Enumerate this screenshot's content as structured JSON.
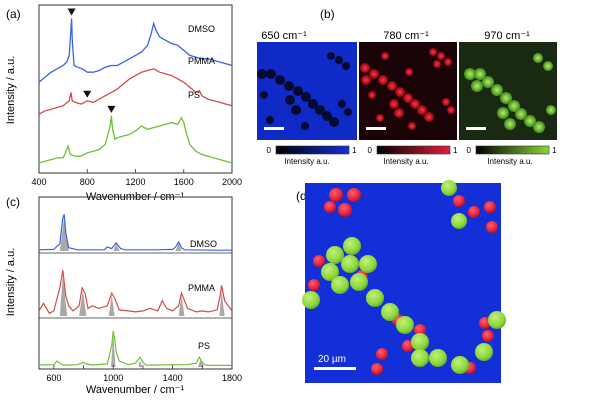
{
  "figure": {
    "panels": {
      "a": "(a)",
      "b": "(b)",
      "c": "(c)",
      "d": "(d)"
    },
    "colors": {
      "dmso": "#3a62e8",
      "pmma": "#d34a4a",
      "ps": "#6fbf3a",
      "peak_fill": "#9a9a9a",
      "map_blue": "#1330d8",
      "map_red": "#e0203a",
      "map_green": "#8ad63a"
    }
  },
  "chart_data": [
    {
      "id": "a",
      "type": "line",
      "title": "",
      "xlabel": "Wavenumber / cm⁻¹",
      "ylabel": "Intensity / a.u.",
      "xlim": [
        400,
        2000
      ],
      "xticks": [
        "400",
        "800",
        "1200",
        "1600",
        "2000"
      ],
      "xtick_values": [
        400,
        800,
        1200,
        1600,
        2000
      ],
      "series": [
        {
          "name": "DMSO",
          "label": "DMSO",
          "marker_at": 670,
          "x": [
            400,
            450,
            500,
            550,
            600,
            630,
            650,
            665,
            670,
            675,
            690,
            720,
            760,
            800,
            850,
            900,
            950,
            1000,
            1050,
            1100,
            1150,
            1200,
            1250,
            1300,
            1330,
            1350,
            1370,
            1400,
            1450,
            1500,
            1550,
            1600,
            1650,
            1700,
            1750,
            1800,
            1850,
            1900,
            1950,
            2000
          ],
          "y": [
            0.54,
            0.57,
            0.6,
            0.62,
            0.64,
            0.66,
            0.7,
            0.86,
            0.92,
            0.8,
            0.64,
            0.63,
            0.62,
            0.6,
            0.6,
            0.61,
            0.63,
            0.64,
            0.64,
            0.66,
            0.68,
            0.7,
            0.72,
            0.76,
            0.83,
            0.89,
            0.85,
            0.81,
            0.79,
            0.77,
            0.76,
            0.73,
            0.7,
            0.69,
            0.68,
            0.68,
            0.67,
            0.66,
            0.65,
            0.64
          ]
        },
        {
          "name": "PMMA",
          "label": "PMMA",
          "marker_at": 800,
          "x": [
            400,
            450,
            500,
            550,
            600,
            650,
            665,
            675,
            700,
            750,
            800,
            850,
            900,
            950,
            1000,
            1050,
            1100,
            1150,
            1200,
            1250,
            1300,
            1350,
            1400,
            1450,
            1500,
            1550,
            1600,
            1650,
            1700,
            1730,
            1750,
            1800,
            1850,
            1900,
            1950,
            2000
          ],
          "y": [
            0.35,
            0.37,
            0.38,
            0.39,
            0.4,
            0.43,
            0.48,
            0.43,
            0.42,
            0.41,
            0.43,
            0.42,
            0.44,
            0.46,
            0.48,
            0.5,
            0.53,
            0.56,
            0.58,
            0.6,
            0.61,
            0.62,
            0.6,
            0.59,
            0.58,
            0.56,
            0.54,
            0.51,
            0.48,
            0.49,
            0.46,
            0.44,
            0.43,
            0.42,
            0.41,
            0.4
          ]
        },
        {
          "name": "PS",
          "label": "PS",
          "marker_at": 1000,
          "x": [
            400,
            450,
            500,
            550,
            600,
            620,
            640,
            660,
            700,
            750,
            800,
            850,
            900,
            950,
            990,
            1000,
            1010,
            1030,
            1050,
            1100,
            1150,
            1200,
            1250,
            1300,
            1350,
            1400,
            1450,
            1500,
            1550,
            1580,
            1600,
            1620,
            1650,
            1700,
            1750,
            1800,
            1850,
            1900,
            1950,
            2000
          ],
          "y": [
            0.06,
            0.07,
            0.08,
            0.09,
            0.09,
            0.12,
            0.16,
            0.11,
            0.1,
            0.1,
            0.12,
            0.13,
            0.14,
            0.17,
            0.28,
            0.34,
            0.26,
            0.2,
            0.21,
            0.22,
            0.23,
            0.25,
            0.28,
            0.26,
            0.27,
            0.28,
            0.29,
            0.3,
            0.29,
            0.33,
            0.3,
            0.24,
            0.17,
            0.13,
            0.11,
            0.1,
            0.09,
            0.08,
            0.07,
            0.06
          ]
        }
      ]
    },
    {
      "id": "c",
      "type": "line",
      "title": "",
      "xlabel": "Wavenumber / cm⁻¹",
      "ylabel": "Intensity / a.u.",
      "xlim": [
        500,
        1800
      ],
      "xticks": [
        "600",
        "800",
        "1000",
        "1200",
        "1400",
        "1600",
        "1800"
      ],
      "xtick_values": [
        600,
        800,
        1000,
        1200,
        1400,
        1600,
        1800
      ],
      "series": [
        {
          "name": "DMSO",
          "label": "DMSO",
          "x": [
            500,
            600,
            640,
            660,
            670,
            680,
            700,
            760,
            940,
            960,
            990,
            1020,
            1050,
            1080,
            1300,
            1400,
            1420,
            1440,
            1460,
            1480,
            1700,
            1800
          ],
          "y": [
            0.03,
            0.04,
            0.18,
            0.8,
            0.9,
            0.45,
            0.08,
            0.03,
            0.03,
            0.1,
            0.06,
            0.2,
            0.06,
            0.03,
            0.03,
            0.04,
            0.1,
            0.22,
            0.08,
            0.03,
            0.02,
            0.02
          ],
          "fill": [
            [
              640,
              670,
              700,
              0.85
            ],
            [
              1000,
              1020,
              1045,
              0.18
            ],
            [
              1420,
              1440,
              1460,
              0.2
            ]
          ]
        },
        {
          "name": "PMMA",
          "label": "PMMA",
          "x": [
            500,
            530,
            570,
            600,
            640,
            660,
            680,
            700,
            730,
            770,
            790,
            810,
            830,
            860,
            900,
            960,
            990,
            1010,
            1040,
            1100,
            1150,
            1200,
            1250,
            1300,
            1330,
            1360,
            1400,
            1440,
            1460,
            1480,
            1500,
            1560,
            1600,
            1640,
            1700,
            1720,
            1730,
            1750,
            1800
          ],
          "y": [
            0.1,
            0.25,
            0.05,
            0.1,
            0.55,
            0.9,
            0.4,
            0.2,
            0.1,
            0.2,
            0.55,
            0.45,
            0.15,
            0.2,
            0.15,
            0.2,
            0.45,
            0.35,
            0.12,
            0.1,
            0.08,
            0.1,
            0.15,
            0.1,
            0.3,
            0.15,
            0.1,
            0.2,
            0.45,
            0.3,
            0.15,
            0.08,
            0.1,
            0.08,
            0.12,
            0.4,
            0.6,
            0.3,
            0.1
          ],
          "fill": [
            [
              640,
              660,
              690,
              0.8
            ],
            [
              770,
              795,
              820,
              0.5
            ],
            [
              970,
              990,
              1010,
              0.42
            ],
            [
              1440,
              1460,
              1480,
              0.4
            ],
            [
              1715,
              1730,
              1750,
              0.5
            ]
          ]
        },
        {
          "name": "PS",
          "label": "PS",
          "x": [
            500,
            600,
            620,
            640,
            660,
            700,
            760,
            800,
            820,
            860,
            960,
            990,
            1000,
            1010,
            1020,
            1040,
            1100,
            1150,
            1180,
            1200,
            1220,
            1300,
            1400,
            1500,
            1560,
            1580,
            1600,
            1620,
            1640,
            1700,
            1800
          ],
          "y": [
            0.05,
            0.06,
            0.15,
            0.1,
            0.05,
            0.05,
            0.06,
            0.12,
            0.08,
            0.05,
            0.08,
            0.55,
            0.92,
            0.7,
            0.4,
            0.15,
            0.06,
            0.1,
            0.25,
            0.12,
            0.05,
            0.05,
            0.06,
            0.06,
            0.1,
            0.25,
            0.12,
            0.05,
            0.04,
            0.04,
            0.04
          ],
          "fill": [
            [
              985,
              1000,
              1015,
              0.85
            ],
            [
              1170,
              1180,
              1195,
              0.18
            ],
            [
              1570,
              1590,
              1610,
              0.2
            ]
          ]
        }
      ]
    }
  ],
  "panel_b": {
    "maps": [
      {
        "title": "650 cm⁻¹",
        "colorbar_min": "0",
        "colorbar_max": "1",
        "colorbar_label": "Intensity a.u."
      },
      {
        "title": "780 cm⁻¹",
        "colorbar_min": "0",
        "colorbar_max": "1",
        "colorbar_label": "Intensity a.u."
      },
      {
        "title": "970 cm⁻¹",
        "colorbar_min": "0",
        "colorbar_max": "1",
        "colorbar_label": "Intensity a.u."
      }
    ]
  },
  "panel_d": {
    "scale_label": "20 µm"
  }
}
